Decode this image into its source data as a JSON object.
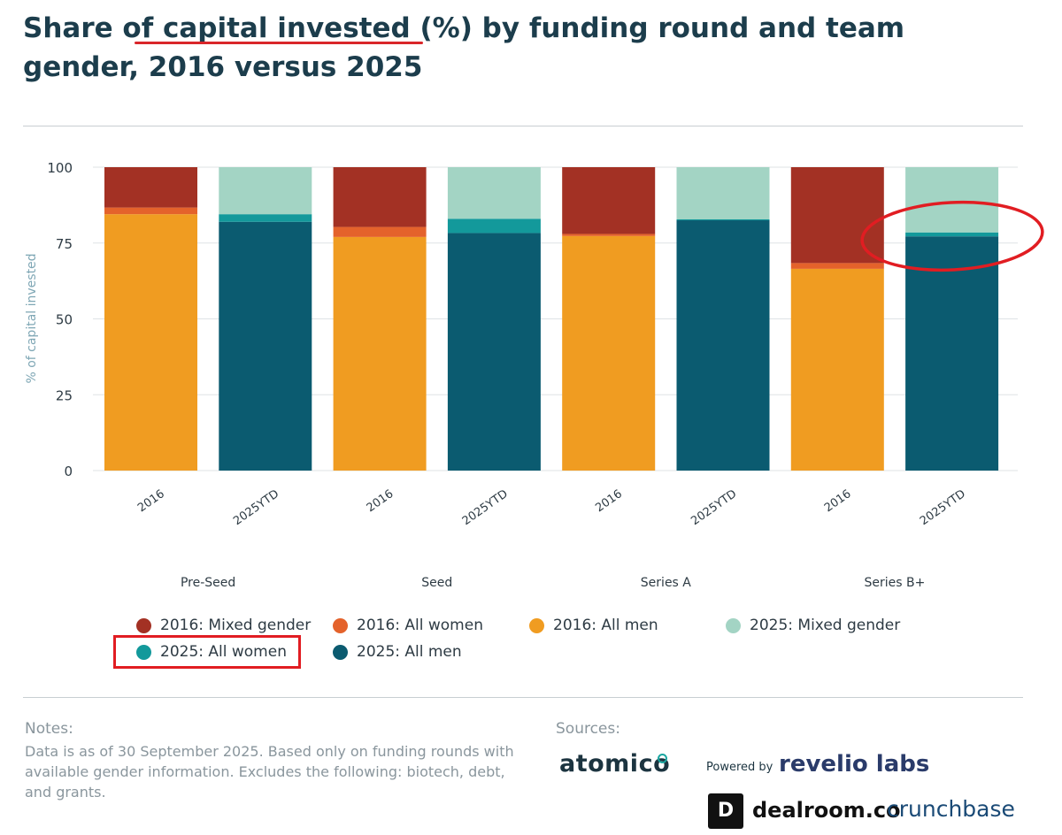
{
  "title": "Share of capital invested (%) by funding round and team gender, 2016 versus 2025",
  "chart_data": {
    "type": "bar",
    "stacked": true,
    "ylabel": "% of capital invested",
    "ylim": [
      0,
      100
    ],
    "yticks": [
      0,
      25,
      50,
      75,
      100
    ],
    "grid": true,
    "groups": [
      "Pre-Seed",
      "Seed",
      "Series A",
      "Series B+"
    ],
    "categories": [
      "2016",
      "2025YTD",
      "2016",
      "2025YTD",
      "2016",
      "2025YTD",
      "2016",
      "2025YTD"
    ],
    "series": [
      {
        "name": "2016: All men",
        "color": "#f09c21",
        "values": [
          84.5,
          null,
          77,
          null,
          77.3,
          null,
          66.5,
          null
        ]
      },
      {
        "name": "2016: All women",
        "color": "#e4622b",
        "values": [
          2.2,
          null,
          3.3,
          null,
          0.7,
          null,
          1.9,
          null
        ]
      },
      {
        "name": "2016: Mixed gender",
        "color": "#a33124",
        "values": [
          13.3,
          null,
          19.7,
          null,
          22,
          null,
          31.6,
          null
        ]
      },
      {
        "name": "2025: All men",
        "color": "#0b5b70",
        "values": [
          null,
          82,
          null,
          78.3,
          null,
          82.5,
          null,
          77.2
        ]
      },
      {
        "name": "2025: All women",
        "color": "#13999b",
        "values": [
          null,
          2.5,
          null,
          4.7,
          null,
          0.3,
          null,
          1.3
        ]
      },
      {
        "name": "2025: Mixed gender",
        "color": "#a3d4c4",
        "values": [
          null,
          15.5,
          null,
          17,
          null,
          17.2,
          null,
          21.5
        ]
      }
    ],
    "legend_position": "bottom"
  },
  "legend": [
    {
      "label": "2016: Mixed gender",
      "color": "#a33124"
    },
    {
      "label": "2016: All women",
      "color": "#e4622b"
    },
    {
      "label": "2016: All men",
      "color": "#f09c21"
    },
    {
      "label": "2025: Mixed gender",
      "color": "#a3d4c4"
    },
    {
      "label": "2025: All women",
      "color": "#13999b"
    },
    {
      "label": "2025: All men",
      "color": "#0b5b70"
    }
  ],
  "notes": {
    "label": "Notes:",
    "text": "Data is as of 30 September 2025. Based only on funding rounds with available gender information. Excludes the following: biotech, debt, and grants."
  },
  "sources": {
    "label": "Sources:",
    "atomico": "atomico",
    "powered_by": "Powered by",
    "revelio": "revelio labs",
    "dealroom_mark": "D",
    "dealroom": "dealroom.co",
    "crunchbase": "crunchbase"
  },
  "annotation_color": "#e11d22"
}
